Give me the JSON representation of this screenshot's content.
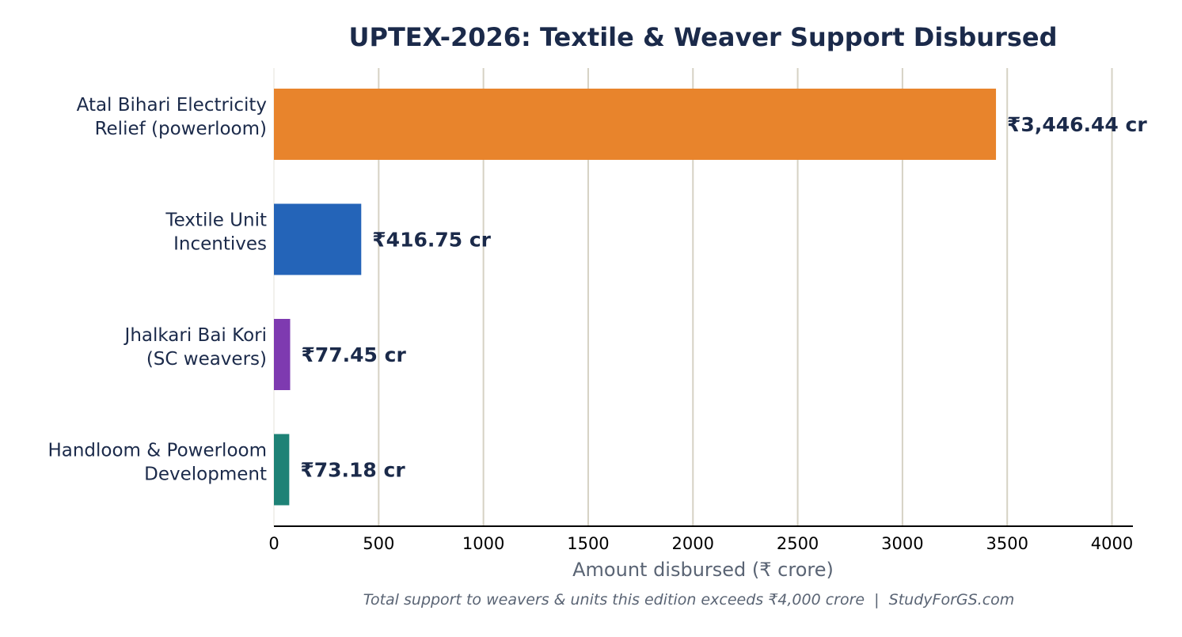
{
  "chart_data": {
    "type": "bar",
    "orientation": "horizontal",
    "title": "UPTEX-2026: Textile & Weaver Support Disbursed",
    "xlabel": "Amount disbursed (₹ crore)",
    "ylabel": "",
    "footnote": "Total support to weavers & units this edition exceeds ₹4,000 crore  |  StudyForGS.com",
    "xlim": [
      0,
      4100
    ],
    "xticks": [
      0,
      500,
      1000,
      1500,
      2000,
      2500,
      3000,
      3500,
      4000
    ],
    "grid": "x-axis vertical lines",
    "categories": [
      [
        "Atal Bihari Electricity",
        "Relief (powerloom)"
      ],
      [
        "Textile Unit",
        "Incentives"
      ],
      [
        "Jhalkari Bai Kori",
        "(SC weavers)"
      ],
      [
        "Handloom & Powerloom",
        "Development"
      ]
    ],
    "values": [
      3446.44,
      416.75,
      77.45,
      73.18
    ],
    "value_labels": [
      "₹3,446.44 cr",
      "₹416.75 cr",
      "₹77.45 cr",
      "₹73.18 cr"
    ],
    "colors": [
      "#e8842c",
      "#2464b8",
      "#7e3ab0",
      "#1e8276"
    ]
  }
}
